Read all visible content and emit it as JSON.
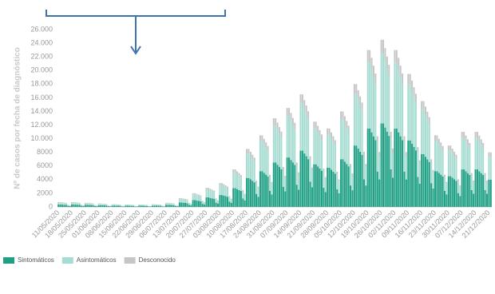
{
  "chart_data": {
    "type": "bar",
    "stacked": true,
    "y_label": "Nº de casos por fecha de diagnóstico",
    "ylim": [
      0,
      26000
    ],
    "yticks": [
      0,
      2000,
      4000,
      6000,
      8000,
      {
        "value": 10000,
        "label": "10.000"
      },
      {
        "value": 12000,
        "label": "12.000"
      },
      {
        "value": 14000,
        "label": "14.000"
      },
      {
        "value": 16000,
        "label": "16.000"
      },
      {
        "value": 18000,
        "label": "18.000"
      },
      {
        "value": 20000,
        "label": "20.000"
      },
      {
        "value": 22000,
        "label": "22.000"
      },
      {
        "value": 24000,
        "label": "24.000"
      },
      {
        "value": 26000,
        "label": "26.000"
      }
    ],
    "grid": false,
    "legend": "bottom-left",
    "categories": [
      "11/05/2020",
      null,
      null,
      null,
      null,
      null,
      null,
      "18/05/2020",
      null,
      null,
      null,
      null,
      null,
      null,
      "25/05/2020",
      null,
      null,
      null,
      null,
      null,
      null,
      "01/06/2020",
      null,
      null,
      null,
      null,
      null,
      null,
      "08/06/2020",
      null,
      null,
      null,
      null,
      null,
      null,
      "15/06/2020",
      null,
      null,
      null,
      null,
      null,
      null,
      "22/06/2020",
      null,
      null,
      null,
      null,
      null,
      null,
      "29/06/2020",
      null,
      null,
      null,
      null,
      null,
      null,
      "06/07/2020",
      null,
      null,
      null,
      null,
      null,
      null,
      "13/07/2020",
      null,
      null,
      null,
      null,
      null,
      null,
      "20/07/2020",
      null,
      null,
      null,
      null,
      null,
      null,
      "27/07/2020",
      null,
      null,
      null,
      null,
      null,
      null,
      "03/08/2020",
      null,
      null,
      null,
      null,
      null,
      null,
      "10/08/2020",
      null,
      null,
      null,
      null,
      null,
      null,
      "17/08/2020",
      null,
      null,
      null,
      null,
      null,
      null,
      "24/08/2020",
      null,
      null,
      null,
      null,
      null,
      null,
      "31/08/2020",
      null,
      null,
      null,
      null,
      null,
      null,
      "07/09/2020",
      null,
      null,
      null,
      null,
      null,
      null,
      "14/09/2020",
      null,
      null,
      null,
      null,
      null,
      null,
      "21/09/2020",
      null,
      null,
      null,
      null,
      null,
      null,
      "28/09/2020",
      null,
      null,
      null,
      null,
      null,
      null,
      "05/10/2020",
      null,
      null,
      null,
      null,
      null,
      null,
      "12/10/2020",
      null,
      null,
      null,
      null,
      null,
      null,
      "19/10/2020",
      null,
      null,
      null,
      null,
      null,
      null,
      "26/10/2020",
      null,
      null,
      null,
      null,
      null,
      null,
      "02/11/2020",
      null,
      null,
      null,
      null,
      null,
      null,
      "09/11/2020",
      null,
      null,
      null,
      null,
      null,
      null,
      "16/11/2020",
      null,
      null,
      null,
      null,
      null,
      null,
      "23/11/2020",
      null,
      null,
      null,
      null,
      null,
      null,
      "30/11/2020",
      null,
      null,
      null,
      null,
      null,
      null,
      "07/12/2020",
      null,
      null,
      null,
      null,
      null,
      null,
      "14/12/2020",
      null,
      null,
      null,
      null,
      null,
      null,
      "21/12/2020",
      null
    ],
    "series": [
      {
        "name": "Sintomáticos",
        "color": "#1fa085",
        "values": [
          350,
          350,
          330,
          320,
          300,
          160,
          120,
          350,
          350,
          330,
          320,
          300,
          160,
          120,
          300,
          300,
          290,
          270,
          260,
          140,
          110,
          250,
          250,
          240,
          230,
          210,
          110,
          90,
          200,
          200,
          190,
          180,
          170,
          90,
          70,
          180,
          180,
          170,
          160,
          150,
          80,
          60,
          180,
          180,
          170,
          160,
          150,
          80,
          60,
          200,
          200,
          190,
          180,
          170,
          90,
          70,
          300,
          300,
          290,
          270,
          260,
          140,
          110,
          650,
          650,
          620,
          590,
          550,
          290,
          230,
          1000,
          1000,
          950,
          900,
          850,
          450,
          350,
          1400,
          1400,
          1330,
          1260,
          1190,
          630,
          490,
          1750,
          1750,
          1660,
          1580,
          1490,
          790,
          610,
          2750,
          2750,
          2610,
          2480,
          2340,
          1240,
          960,
          4250,
          4250,
          4040,
          3830,
          3610,
          1910,
          1490,
          5250,
          5250,
          4990,
          4730,
          4460,
          2360,
          1840,
          6500,
          6500,
          6180,
          5850,
          5530,
          2930,
          2280,
          7250,
          7250,
          6890,
          6530,
          6160,
          3260,
          2540,
          8250,
          8250,
          7840,
          7430,
          7010,
          3710,
          2890,
          6250,
          6250,
          5940,
          5630,
          5310,
          2810,
          2190,
          5750,
          5750,
          5460,
          5180,
          4890,
          2590,
          2010,
          7000,
          7000,
          6650,
          6300,
          5950,
          3150,
          2450,
          9000,
          9000,
          8550,
          8100,
          7650,
          4050,
          3150,
          11500,
          11500,
          10930,
          10350,
          9780,
          5180,
          4030,
          12250,
          12250,
          11640,
          11030,
          10410,
          5510,
          4290,
          11500,
          11500,
          10930,
          10350,
          9780,
          5180,
          4030,
          9750,
          9750,
          9260,
          8780,
          8290,
          4390,
          3410,
          7750,
          7750,
          7360,
          6980,
          6590,
          3490,
          2710,
          5250,
          5250,
          4990,
          4730,
          4460,
          2360,
          1840,
          4500,
          4500,
          4280,
          4050,
          3830,
          2030,
          1580,
          5500,
          5500,
          5230,
          4950,
          4680,
          2480,
          1930,
          5500,
          5500,
          5230,
          4950,
          4680,
          2480,
          1930,
          4000,
          4000
        ]
      },
      {
        "name": "Asintomáticos",
        "color": "#a6dcd1",
        "values": [
          290,
          290,
          280,
          260,
          250,
          130,
          100,
          290,
          290,
          280,
          260,
          250,
          130,
          100,
          250,
          250,
          240,
          230,
          210,
          110,
          90,
          210,
          210,
          200,
          190,
          180,
          90,
          70,
          170,
          170,
          160,
          150,
          140,
          80,
          60,
          150,
          150,
          140,
          140,
          130,
          70,
          50,
          150,
          150,
          140,
          140,
          130,
          70,
          50,
          170,
          170,
          160,
          150,
          140,
          80,
          60,
          250,
          250,
          240,
          230,
          210,
          110,
          90,
          550,
          550,
          520,
          500,
          470,
          250,
          190,
          840,
          840,
          800,
          760,
          710,
          380,
          290,
          1180,
          1180,
          1120,
          1060,
          1000,
          530,
          410,
          1470,
          1470,
          1400,
          1320,
          1250,
          660,
          510,
          2310,
          2310,
          2190,
          2080,
          1960,
          1040,
          810,
          3570,
          3570,
          3390,
          3210,
          3030,
          1610,
          1250,
          4410,
          4410,
          4190,
          3970,
          3750,
          1980,
          1540,
          5460,
          5460,
          5190,
          4910,
          4640,
          2460,
          1910,
          6090,
          6090,
          5790,
          5480,
          5180,
          2740,
          2130,
          6930,
          6930,
          6580,
          6240,
          5890,
          3120,
          2430,
          5250,
          5250,
          4990,
          4730,
          4460,
          2360,
          1840,
          4830,
          4830,
          4590,
          4350,
          4110,
          2170,
          1690,
          5880,
          5880,
          5590,
          5290,
          5000,
          2650,
          2060,
          7560,
          7560,
          7180,
          6800,
          6430,
          3400,
          2650,
          9660,
          9660,
          9180,
          8690,
          8210,
          4350,
          3380,
          10290,
          10290,
          9780,
          9260,
          8750,
          4630,
          3600,
          9660,
          9660,
          9180,
          8690,
          8210,
          4350,
          3380,
          8190,
          8190,
          7780,
          7370,
          6960,
          3690,
          2870,
          6510,
          6510,
          6180,
          5860,
          5530,
          2930,
          2280,
          4410,
          4410,
          4190,
          3970,
          3750,
          1980,
          1540,
          3780,
          3780,
          3590,
          3400,
          3210,
          1700,
          1320,
          4620,
          4620,
          4390,
          4160,
          3930,
          2080,
          1620,
          4620,
          4620,
          4390,
          4160,
          3930,
          2080,
          1620,
          3360,
          3360
        ]
      },
      {
        "name": "Desconocido",
        "color": "#c6c6c6",
        "values": [
          60,
          60,
          60,
          50,
          50,
          30,
          20,
          60,
          60,
          60,
          50,
          50,
          30,
          20,
          50,
          50,
          50,
          50,
          40,
          20,
          20,
          40,
          40,
          40,
          40,
          30,
          20,
          10,
          30,
          30,
          30,
          30,
          30,
          10,
          10,
          20,
          20,
          20,
          20,
          20,
          10,
          10,
          20,
          20,
          20,
          20,
          20,
          10,
          10,
          30,
          30,
          30,
          30,
          30,
          10,
          10,
          50,
          50,
          50,
          50,
          40,
          20,
          20,
          100,
          100,
          100,
          90,
          90,
          50,
          40,
          160,
          160,
          150,
          140,
          140,
          70,
          60,
          220,
          220,
          210,
          200,
          190,
          100,
          80,
          280,
          280,
          270,
          250,
          240,
          130,
          100,
          440,
          440,
          420,
          400,
          370,
          200,
          150,
          680,
          680,
          650,
          610,
          580,
          310,
          240,
          840,
          840,
          800,
          760,
          710,
          380,
          290,
          1040,
          1040,
          990,
          940,
          880,
          470,
          360,
          1160,
          1160,
          1100,
          1040,
          990,
          520,
          410,
          1320,
          1320,
          1250,
          1190,
          1120,
          590,
          460,
          1000,
          1000,
          950,
          900,
          850,
          450,
          350,
          920,
          920,
          870,
          830,
          780,
          410,
          320,
          1120,
          1120,
          1060,
          1010,
          950,
          500,
          390,
          1440,
          1440,
          1370,
          1300,
          1220,
          650,
          500,
          1840,
          1840,
          1750,
          1660,
          1560,
          830,
          640,
          1960,
          1960,
          1860,
          1760,
          1670,
          880,
          690,
          1840,
          1840,
          1750,
          1660,
          1560,
          830,
          640,
          1560,
          1560,
          1480,
          1400,
          1330,
          700,
          550,
          1240,
          1240,
          1180,
          1120,
          1050,
          560,
          430,
          840,
          840,
          800,
          760,
          710,
          380,
          290,
          720,
          720,
          680,
          650,
          610,
          320,
          250,
          880,
          880,
          840,
          790,
          750,
          400,
          310,
          880,
          880,
          840,
          790,
          750,
          400,
          310,
          640,
          640
        ]
      }
    ]
  }
}
